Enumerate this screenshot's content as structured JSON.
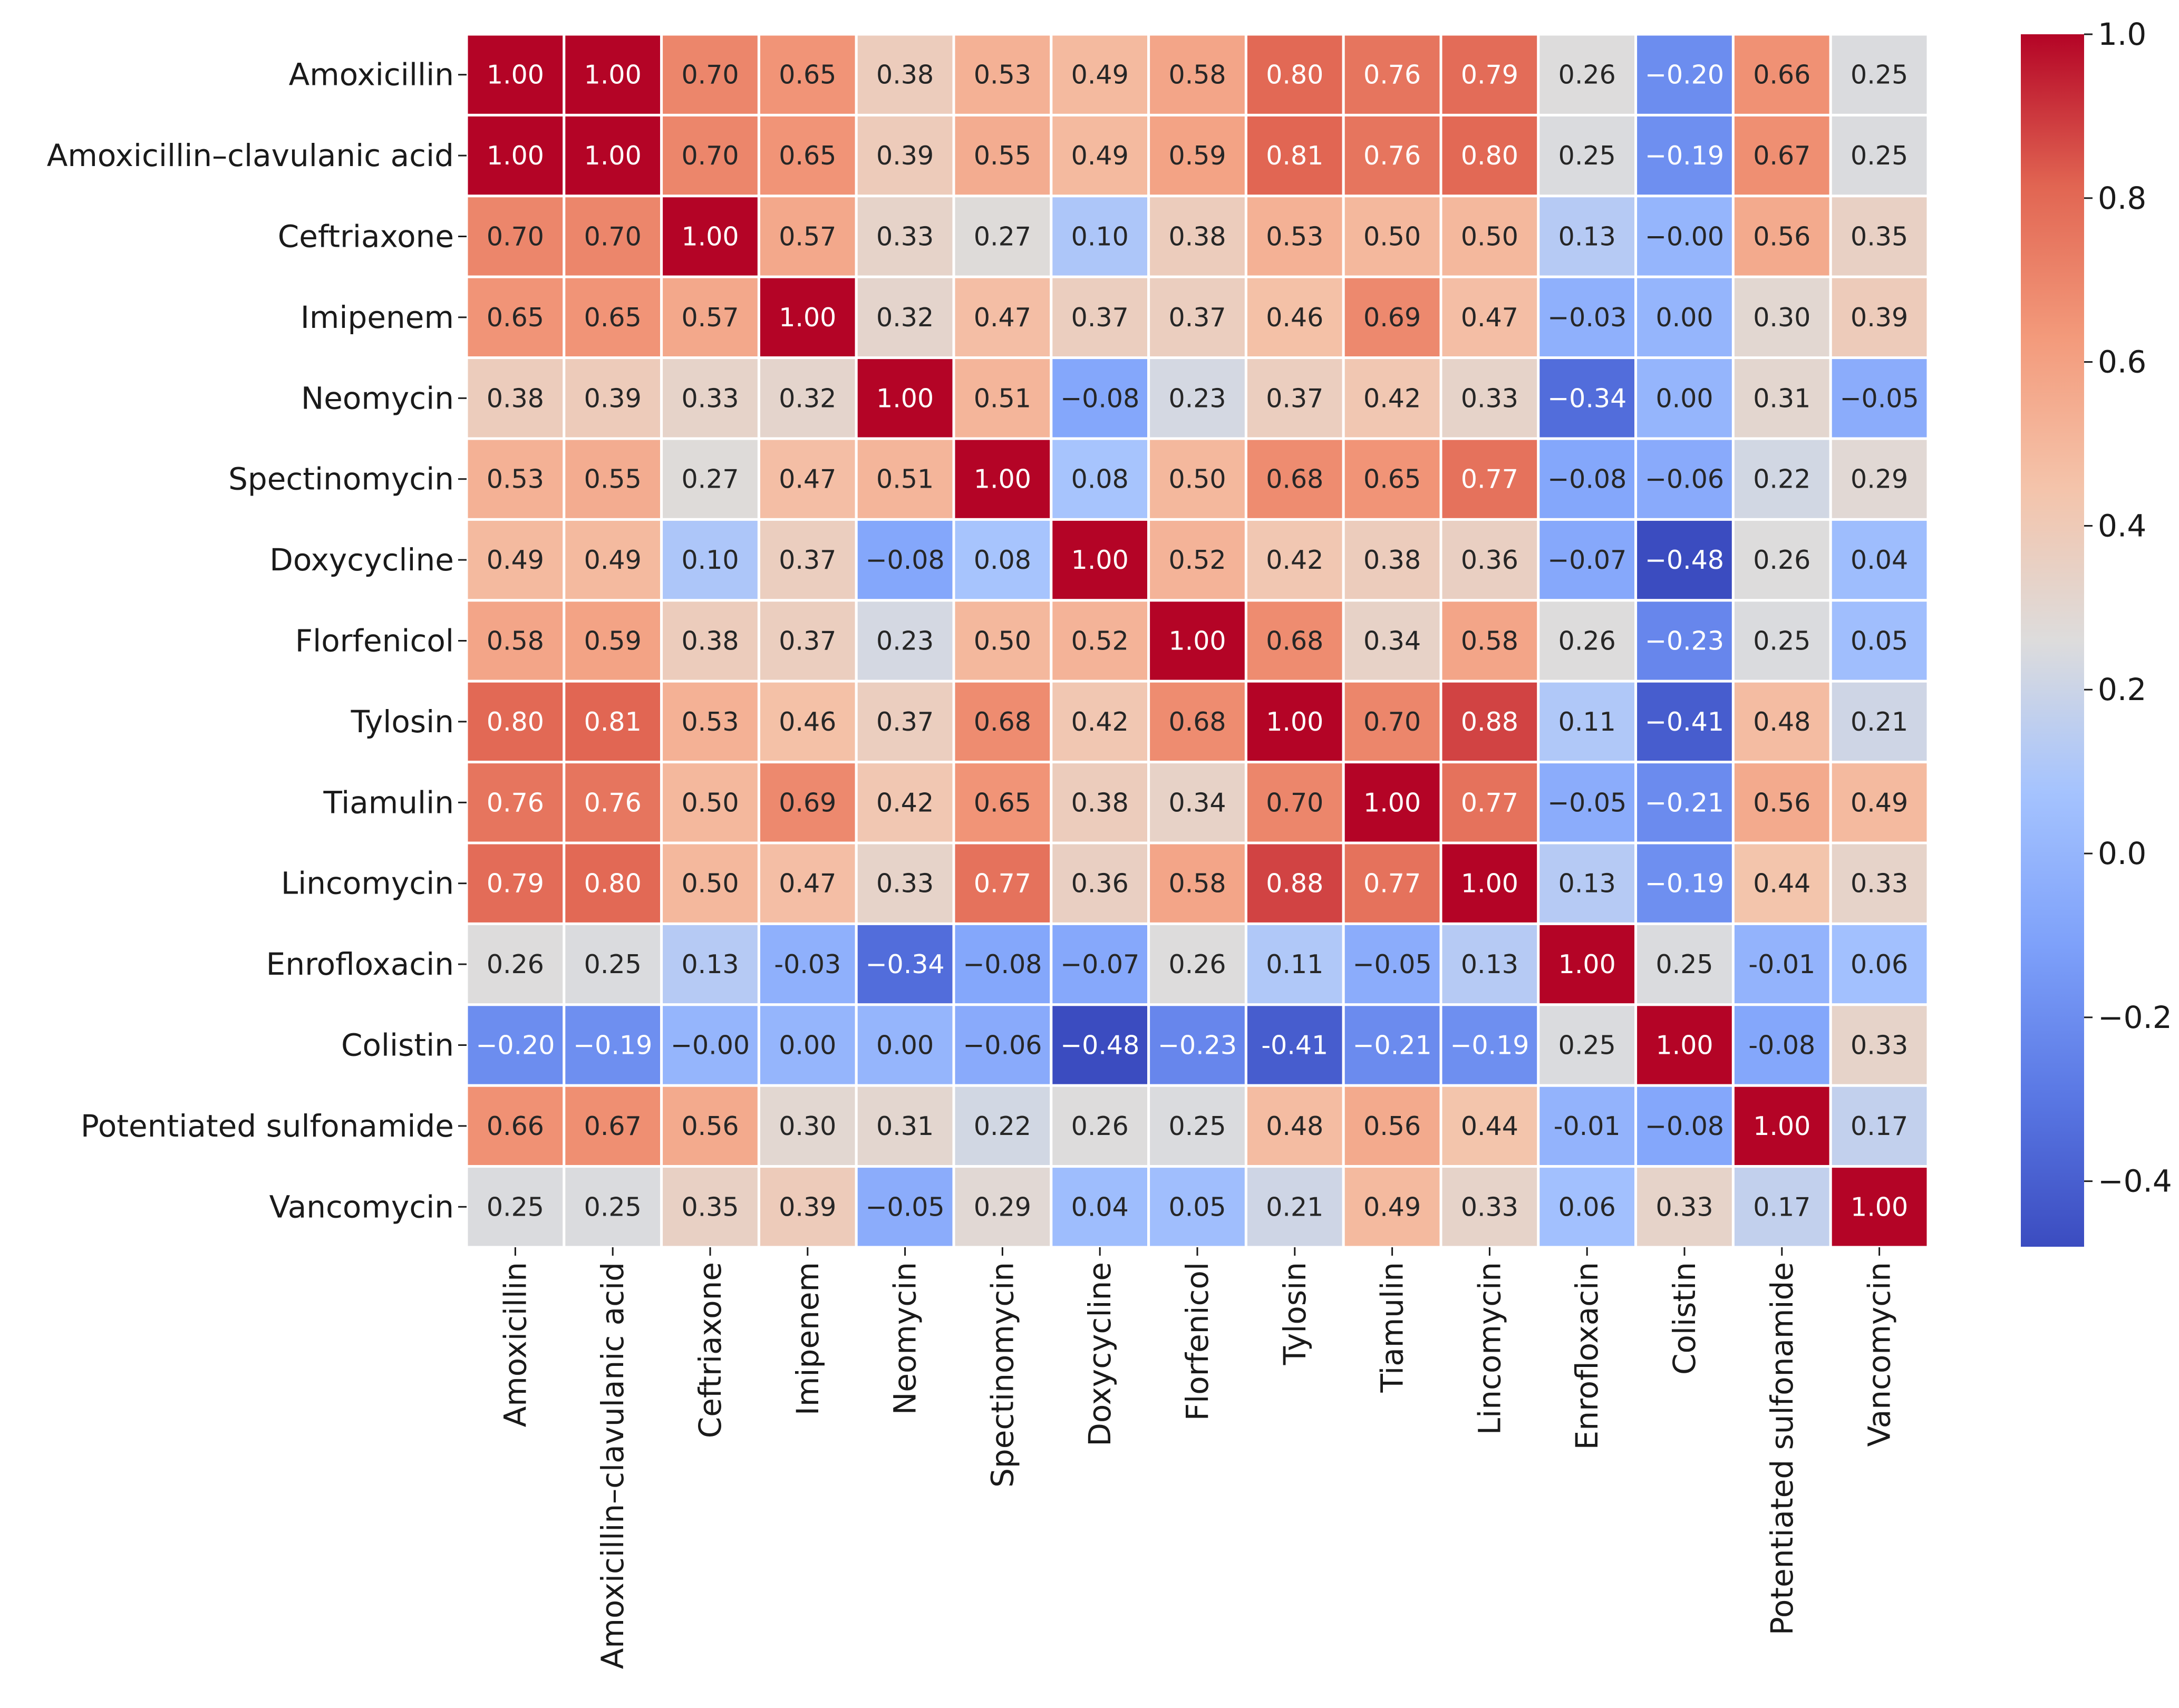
{
  "chart_data": {
    "type": "heatmap",
    "title": "",
    "xlabel": "",
    "ylabel": "",
    "colormap": "coolwarm",
    "vmin": -0.48,
    "vmax": 1.0,
    "labels": [
      "Amoxicillin",
      "Amoxicillin–clavulanic acid",
      "Ceftriaxone",
      "Imipenem",
      "Neomycin",
      "Spectinomycin",
      "Doxycycline",
      "Florfenicol",
      "Tylosin",
      "Tiamulin",
      "Lincomycin",
      "Enrofloxacin",
      "Colistin",
      "Potentiated sulfonamide",
      "Vancomycin"
    ],
    "matrix": [
      [
        1.0,
        1.0,
        0.7,
        0.65,
        0.38,
        0.53,
        0.49,
        0.58,
        0.8,
        0.76,
        0.79,
        0.26,
        -0.2,
        0.66,
        0.25
      ],
      [
        1.0,
        1.0,
        0.7,
        0.65,
        0.39,
        0.55,
        0.49,
        0.59,
        0.81,
        0.76,
        0.8,
        0.25,
        -0.19,
        0.67,
        0.25
      ],
      [
        0.7,
        0.7,
        1.0,
        0.57,
        0.33,
        0.27,
        0.1,
        0.38,
        0.53,
        0.5,
        0.5,
        0.13,
        -0.0,
        0.56,
        0.35
      ],
      [
        0.65,
        0.65,
        0.57,
        1.0,
        0.32,
        0.47,
        0.37,
        0.37,
        0.46,
        0.69,
        0.47,
        -0.03,
        0.0,
        0.3,
        0.39
      ],
      [
        0.38,
        0.39,
        0.33,
        0.32,
        1.0,
        0.51,
        -0.08,
        0.23,
        0.37,
        0.42,
        0.33,
        -0.34,
        0.0,
        0.31,
        -0.05
      ],
      [
        0.53,
        0.55,
        0.27,
        0.47,
        0.51,
        1.0,
        0.08,
        0.5,
        0.68,
        0.65,
        0.77,
        -0.08,
        -0.06,
        0.22,
        0.29
      ],
      [
        0.49,
        0.49,
        0.1,
        0.37,
        -0.08,
        0.08,
        1.0,
        0.52,
        0.42,
        0.38,
        0.36,
        -0.07,
        -0.48,
        0.26,
        0.04
      ],
      [
        0.58,
        0.59,
        0.38,
        0.37,
        0.23,
        0.5,
        0.52,
        1.0,
        0.68,
        0.34,
        0.58,
        0.26,
        -0.23,
        0.25,
        0.05
      ],
      [
        0.8,
        0.81,
        0.53,
        0.46,
        0.37,
        0.68,
        0.42,
        0.68,
        1.0,
        0.7,
        0.88,
        0.11,
        -0.41,
        0.48,
        0.21
      ],
      [
        0.76,
        0.76,
        0.5,
        0.69,
        0.42,
        0.65,
        0.38,
        0.34,
        0.7,
        1.0,
        0.77,
        -0.05,
        -0.21,
        0.56,
        0.49
      ],
      [
        0.79,
        0.8,
        0.5,
        0.47,
        0.33,
        0.77,
        0.36,
        0.58,
        0.88,
        0.77,
        1.0,
        0.13,
        -0.19,
        0.44,
        0.33
      ],
      [
        0.26,
        0.25,
        0.13,
        -0.03,
        -0.34,
        -0.08,
        -0.07,
        0.26,
        0.11,
        -0.05,
        0.13,
        1.0,
        0.25,
        -0.01,
        0.06
      ],
      [
        -0.2,
        -0.19,
        -0.0,
        0.0,
        0.0,
        -0.06,
        -0.48,
        -0.23,
        -0.41,
        -0.21,
        -0.19,
        0.25,
        1.0,
        -0.08,
        0.33
      ],
      [
        0.66,
        0.67,
        0.56,
        0.3,
        0.31,
        0.22,
        0.26,
        0.25,
        0.48,
        0.56,
        0.44,
        -0.01,
        -0.08,
        1.0,
        0.17
      ],
      [
        0.25,
        0.25,
        0.35,
        0.39,
        -0.05,
        0.29,
        0.04,
        0.05,
        0.21,
        0.49,
        0.33,
        0.06,
        0.33,
        0.17,
        1.0
      ]
    ],
    "cell_text": [
      [
        "1.00",
        "1.00",
        "0.70",
        "0.65",
        "0.38",
        "0.53",
        "0.49",
        "0.58",
        "0.80",
        "0.76",
        "0.79",
        "0.26",
        "−0.20",
        "0.66",
        "0.25"
      ],
      [
        "1.00",
        "1.00",
        "0.70",
        "0.65",
        "0.39",
        "0.55",
        "0.49",
        "0.59",
        "0.81",
        "0.76",
        "0.80",
        "0.25",
        "−0.19",
        "0.67",
        "0.25"
      ],
      [
        "0.70",
        "0.70",
        "1.00",
        "0.57",
        "0.33",
        "0.27",
        "0.10",
        "0.38",
        "0.53",
        "0.50",
        "0.50",
        "0.13",
        "−0.00",
        "0.56",
        "0.35"
      ],
      [
        "0.65",
        "0.65",
        "0.57",
        "1.00",
        "0.32",
        "0.47",
        "0.37",
        "0.37",
        "0.46",
        "0.69",
        "0.47",
        "−0.03",
        "0.00",
        "0.30",
        "0.39"
      ],
      [
        "0.38",
        "0.39",
        "0.33",
        "0.32",
        "1.00",
        "0.51",
        "−0.08",
        "0.23",
        "0.37",
        "0.42",
        "0.33",
        "−0.34",
        "0.00",
        "0.31",
        "−0.05"
      ],
      [
        "0.53",
        "0.55",
        "0.27",
        "0.47",
        "0.51",
        "1.00",
        "0.08",
        "0.50",
        "0.68",
        "0.65",
        "0.77",
        "−0.08",
        "−0.06",
        "0.22",
        "0.29"
      ],
      [
        "0.49",
        "0.49",
        "0.10",
        "0.37",
        "−0.08",
        "0.08",
        "1.00",
        "0.52",
        "0.42",
        "0.38",
        "0.36",
        "−0.07",
        "−0.48",
        "0.26",
        "0.04"
      ],
      [
        "0.58",
        "0.59",
        "0.38",
        "0.37",
        "0.23",
        "0.50",
        "0.52",
        "1.00",
        "0.68",
        "0.34",
        "0.58",
        "0.26",
        "−0.23",
        "0.25",
        "0.05"
      ],
      [
        "0.80",
        "0.81",
        "0.53",
        "0.46",
        "0.37",
        "0.68",
        "0.42",
        "0.68",
        "1.00",
        "0.70",
        "0.88",
        "0.11",
        "−0.41",
        "0.48",
        "0.21"
      ],
      [
        "0.76",
        "0.76",
        "0.50",
        "0.69",
        "0.42",
        "0.65",
        "0.38",
        "0.34",
        "0.70",
        "1.00",
        "0.77",
        "−0.05",
        "−0.21",
        "0.56",
        "0.49"
      ],
      [
        "0.79",
        "0.80",
        "0.50",
        "0.47",
        "0.33",
        "0.77",
        "0.36",
        "0.58",
        "0.88",
        "0.77",
        "1.00",
        "0.13",
        "−0.19",
        "0.44",
        "0.33"
      ],
      [
        "0.26",
        "0.25",
        "0.13",
        "-0.03",
        "−0.34",
        "−0.08",
        "−0.07",
        "0.26",
        "0.11",
        "−0.05",
        "0.13",
        "1.00",
        "0.25",
        "-0.01",
        "0.06"
      ],
      [
        "−0.20",
        "−0.19",
        "−0.00",
        "0.00",
        "0.00",
        "−0.06",
        "−0.48",
        "−0.23",
        "-0.41",
        "−0.21",
        "−0.19",
        "0.25",
        "1.00",
        "-0.08",
        "0.33"
      ],
      [
        "0.66",
        "0.67",
        "0.56",
        "0.30",
        "0.31",
        "0.22",
        "0.26",
        "0.25",
        "0.48",
        "0.56",
        "0.44",
        "-0.01",
        "−0.08",
        "1.00",
        "0.17"
      ],
      [
        "0.25",
        "0.25",
        "0.35",
        "0.39",
        "−0.05",
        "0.29",
        "0.04",
        "0.05",
        "0.21",
        "0.49",
        "0.33",
        "0.06",
        "0.33",
        "0.17",
        "1.00"
      ]
    ],
    "colorbar": {
      "ticks": [
        1.0,
        0.8,
        0.6,
        0.4,
        0.2,
        0.0,
        -0.2,
        -0.4
      ],
      "tick_labels": [
        "1.0",
        "0.8",
        "0.6",
        "0.4",
        "0.2",
        "0.0",
        "−0.2",
        "−0.4"
      ]
    }
  }
}
